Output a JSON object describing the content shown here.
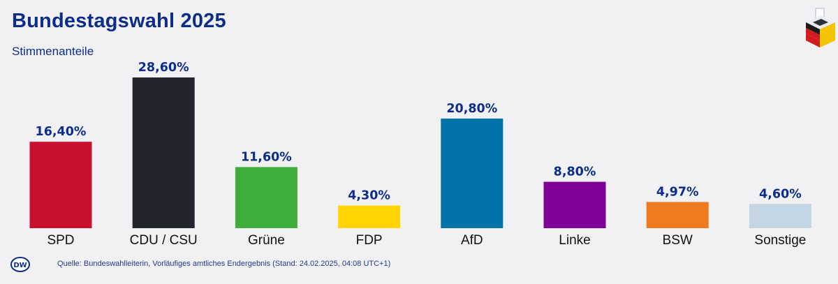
{
  "header": {
    "title": "Bundestagswahl 2025",
    "subtitle": "Stimmenanteile"
  },
  "footer": {
    "logo_text": "DW",
    "source": "Quelle: Bundeswahlleiterin, Vorläufiges amtliches Endergebnis (Stand: 24.02.2025, 04:08 UTC+1)"
  },
  "icons": {
    "logo": "dw-logo-icon",
    "ballot": "ballot-box-icon"
  },
  "chart_data": {
    "type": "bar",
    "title": "Bundestagswahl 2025",
    "subtitle": "Stimmenanteile",
    "categories": [
      "SPD",
      "CDU / CSU",
      "Grüne",
      "FDP",
      "AfD",
      "Linke",
      "BSW",
      "Sonstige"
    ],
    "values": [
      16.4,
      28.6,
      11.6,
      4.3,
      20.8,
      8.8,
      4.97,
      4.6
    ],
    "value_labels": [
      "16,40%",
      "28,60%",
      "11,60%",
      "4,30%",
      "20,80%",
      "8,80%",
      "4,97%",
      "4,60%"
    ],
    "colors": [
      "#c8102e",
      "#22252e",
      "#3fae3a",
      "#ffd400",
      "#0073a8",
      "#7f0099",
      "#f07a1e",
      "#c4d6e3"
    ],
    "xlabel": "",
    "ylabel": "",
    "ylim": [
      0,
      28.6
    ],
    "grid": false,
    "legend": "none"
  }
}
